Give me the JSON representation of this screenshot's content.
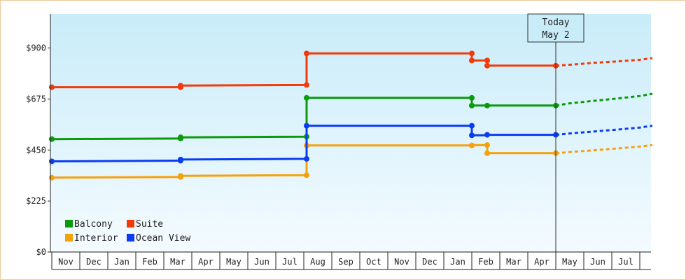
{
  "chart_data": {
    "type": "line",
    "step": true,
    "yticks": [
      {
        "value": 0,
        "label": "$0"
      },
      {
        "value": 225,
        "label": "$225"
      },
      {
        "value": 450,
        "label": "$450"
      },
      {
        "value": 675,
        "label": "$675"
      },
      {
        "value": 900,
        "label": "$900"
      }
    ],
    "ylim": [
      0,
      1050
    ],
    "months": [
      "Nov",
      "Dec",
      "Jan",
      "Feb",
      "Mar",
      "Apr",
      "May",
      "Jun",
      "Jul",
      "Aug",
      "Sep",
      "Oct",
      "Nov",
      "Dec",
      "Jan",
      "Feb",
      "Mar",
      "Apr",
      "May",
      "Jun",
      "Jul"
    ],
    "xlim": [
      0,
      21.45
    ],
    "today": {
      "line1": "Today",
      "line2": "May 2",
      "x": 18.0
    },
    "legend": {
      "placement": "bottom-left"
    },
    "background": {
      "top": "#c9ecf9",
      "bottom": "#f4fbff"
    },
    "series": [
      {
        "name": "Balcony",
        "color": "#0a9a0a",
        "points": [
          [
            0.0,
            498
          ],
          [
            4.6,
            501
          ],
          [
            4.6,
            506
          ],
          [
            9.1,
            509
          ],
          [
            9.1,
            680
          ],
          [
            15.0,
            680
          ],
          [
            15.0,
            646
          ],
          [
            15.55,
            646
          ],
          [
            18.0,
            646
          ]
        ],
        "markers": [
          [
            0.0,
            498
          ],
          [
            4.6,
            501
          ],
          [
            4.6,
            506
          ],
          [
            9.1,
            509
          ],
          [
            9.1,
            680
          ],
          [
            15.0,
            680
          ],
          [
            15.0,
            646
          ],
          [
            15.55,
            646
          ],
          [
            18.0,
            646
          ]
        ],
        "forecast": [
          [
            18.0,
            646
          ],
          [
            18.5,
            656
          ],
          [
            19.3,
            666
          ],
          [
            20.1,
            676
          ],
          [
            21.0,
            688
          ],
          [
            21.45,
            698
          ]
        ]
      },
      {
        "name": "Suite",
        "color": "#f23a0a",
        "points": [
          [
            0.0,
            727
          ],
          [
            4.6,
            727
          ],
          [
            4.6,
            734
          ],
          [
            9.1,
            737
          ],
          [
            9.1,
            876
          ],
          [
            15.0,
            876
          ],
          [
            15.0,
            845
          ],
          [
            15.55,
            845
          ],
          [
            15.55,
            822
          ],
          [
            18.0,
            822
          ]
        ],
        "markers": [
          [
            0.0,
            727
          ],
          [
            4.6,
            727
          ],
          [
            4.6,
            734
          ],
          [
            9.1,
            737
          ],
          [
            9.1,
            876
          ],
          [
            15.0,
            876
          ],
          [
            15.0,
            845
          ],
          [
            15.55,
            845
          ],
          [
            15.55,
            822
          ],
          [
            18.0,
            822
          ]
        ],
        "forecast": [
          [
            18.0,
            822
          ],
          [
            18.6,
            827
          ],
          [
            19.4,
            835
          ],
          [
            20.2,
            841
          ],
          [
            21.0,
            848
          ],
          [
            21.45,
            855
          ]
        ]
      },
      {
        "name": "Interior",
        "color": "#f5a10a",
        "points": [
          [
            0.0,
            328
          ],
          [
            4.6,
            331
          ],
          [
            4.6,
            336
          ],
          [
            9.1,
            339
          ],
          [
            9.1,
            470
          ],
          [
            15.0,
            470
          ],
          [
            15.0,
            472
          ],
          [
            15.55,
            472
          ],
          [
            15.55,
            436
          ],
          [
            18.0,
            436
          ]
        ],
        "markers": [
          [
            0.0,
            328
          ],
          [
            4.6,
            331
          ],
          [
            4.6,
            336
          ],
          [
            9.1,
            339
          ],
          [
            9.1,
            470
          ],
          [
            15.0,
            470
          ],
          [
            15.55,
            472
          ],
          [
            15.55,
            436
          ],
          [
            18.0,
            436
          ]
        ],
        "forecast": [
          [
            18.0,
            436
          ],
          [
            18.6,
            442
          ],
          [
            19.4,
            449
          ],
          [
            20.2,
            457
          ],
          [
            21.0,
            465
          ],
          [
            21.45,
            472
          ]
        ]
      },
      {
        "name": "Ocean View",
        "color": "#0a3df2",
        "points": [
          [
            0.0,
            400
          ],
          [
            4.6,
            403
          ],
          [
            4.6,
            408
          ],
          [
            9.1,
            411
          ],
          [
            9.1,
            557
          ],
          [
            15.0,
            557
          ],
          [
            15.0,
            515
          ],
          [
            15.55,
            515
          ],
          [
            15.55,
            517
          ],
          [
            18.0,
            517
          ]
        ],
        "markers": [
          [
            0.0,
            400
          ],
          [
            4.6,
            403
          ],
          [
            4.6,
            408
          ],
          [
            9.1,
            411
          ],
          [
            9.1,
            557
          ],
          [
            15.0,
            557
          ],
          [
            15.0,
            515
          ],
          [
            15.55,
            517
          ],
          [
            18.0,
            517
          ]
        ],
        "forecast": [
          [
            18.0,
            517
          ],
          [
            18.6,
            524
          ],
          [
            19.4,
            532
          ],
          [
            20.2,
            540
          ],
          [
            21.0,
            549
          ],
          [
            21.45,
            557
          ]
        ]
      }
    ]
  }
}
